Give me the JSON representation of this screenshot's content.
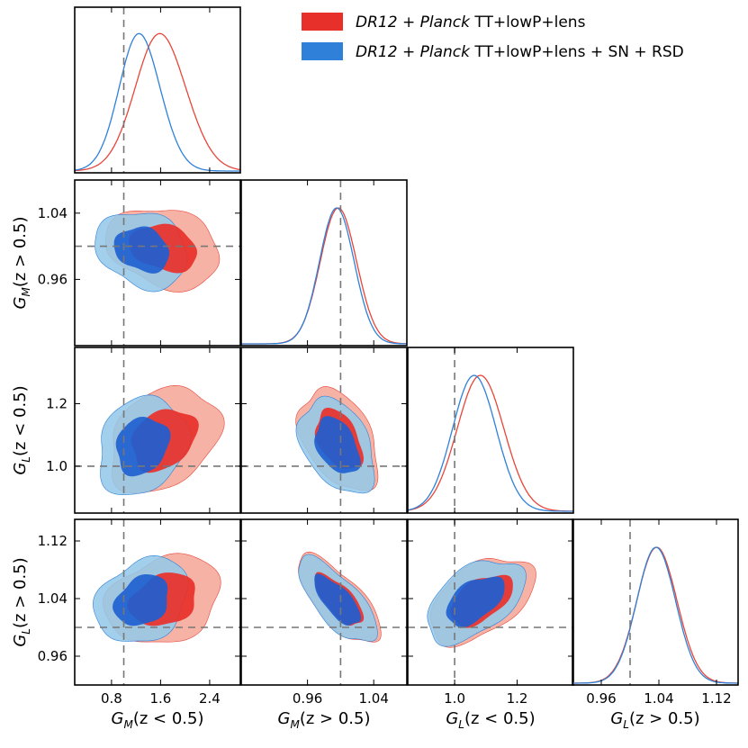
{
  "chart_data": {
    "type": "corner",
    "title": "",
    "parameters": [
      {
        "id": "gm_low",
        "label_main": "G",
        "label_sub": "M",
        "label_arg": "(z < 0.5)",
        "range": [
          0.2,
          2.9
        ],
        "ticks": [
          0.8,
          1.6,
          2.4
        ],
        "tick_labels": [
          "0.8",
          "1.6",
          "2.4"
        ],
        "reference": 1.0
      },
      {
        "id": "gm_high",
        "label_main": "G",
        "label_sub": "M",
        "label_arg": "(z > 0.5)",
        "range": [
          0.88,
          1.08
        ],
        "ticks": [
          0.96,
          1.04
        ],
        "tick_labels": [
          "0.96",
          "1.04"
        ],
        "reference": 1.0
      },
      {
        "id": "gl_low",
        "label_main": "G",
        "label_sub": "L",
        "label_arg": "(z < 0.5)",
        "range": [
          0.85,
          1.38
        ],
        "ticks": [
          1.0,
          1.2
        ],
        "tick_labels": [
          "1.0",
          "1.2"
        ],
        "reference": 1.0
      },
      {
        "id": "gl_high",
        "label_main": "G",
        "label_sub": "L",
        "label_arg": "(z > 0.5)",
        "range": [
          0.92,
          1.15
        ],
        "ticks": [
          0.96,
          1.04,
          1.12
        ],
        "tick_labels": [
          "0.96",
          "1.04",
          "1.12"
        ],
        "reference": 1.0
      }
    ],
    "series": [
      {
        "name": "DR12 + Planck TT+lowP+lens",
        "legend_parts": {
          "italic1": "DR12",
          "plus1": " + ",
          "italic2": "Planck",
          "rest": " TT+lowP+lens"
        },
        "colors": {
          "line": "#e8453a",
          "inner": "#e8302a",
          "outer": "#f5a898"
        },
        "means": [
          1.65,
          0.998,
          1.085,
          1.038
        ],
        "sigmas": [
          0.42,
          0.022,
          0.075,
          0.028
        ],
        "correlations": [
          [
            1.0,
            -0.18,
            0.3,
            0.18
          ],
          [
            -0.18,
            1.0,
            -0.45,
            -0.7
          ],
          [
            0.3,
            -0.45,
            1.0,
            0.5
          ],
          [
            0.18,
            -0.7,
            0.5,
            1.0
          ]
        ]
      },
      {
        "name": "DR12 + Planck TT+lowP+lens + SN + RSD",
        "legend_parts": {
          "italic1": "DR12",
          "plus1": " + ",
          "italic2": "Planck",
          "rest": " TT+lowP+lens + SN + RSD"
        },
        "colors": {
          "line": "#2f80d8",
          "inner": "#2060d0",
          "outer": "#95c8e8"
        },
        "means": [
          1.3,
          0.996,
          1.065,
          1.037
        ],
        "sigmas": [
          0.34,
          0.021,
          0.07,
          0.027
        ],
        "correlations": [
          [
            1.0,
            -0.15,
            0.2,
            0.2
          ],
          [
            -0.15,
            1.0,
            -0.42,
            -0.7
          ],
          [
            0.2,
            -0.42,
            1.0,
            0.5
          ],
          [
            0.2,
            -0.7,
            0.5,
            1.0
          ]
        ]
      }
    ],
    "legend_position": "top-right",
    "grid": false
  }
}
